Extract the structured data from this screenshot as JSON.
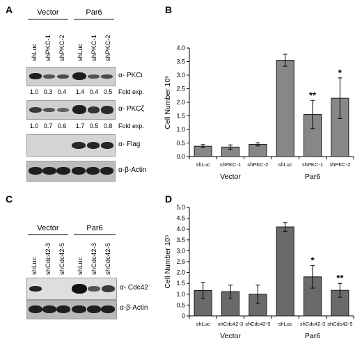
{
  "panels": {
    "A": {
      "letter": "A",
      "groups": [
        "Vector",
        "Par6"
      ],
      "lanes": [
        "shLuc",
        "shPKC‑1",
        "shPKC‑2",
        "shLuc",
        "shPKC‑1",
        "shPKC‑2"
      ],
      "blots": [
        {
          "label": "α- PKCι",
          "values": [
            "1.0",
            "0.3",
            "0.4",
            "1.4",
            "0.4",
            "0.5"
          ],
          "foldexp": "Fold exp."
        },
        {
          "label": "α- PKCζ",
          "values": [
            "1.0",
            "0.7",
            "0.6",
            "1.7",
            "0.5",
            "0.8"
          ],
          "foldexp": "Fold exp."
        },
        {
          "label": "α- Flag"
        },
        {
          "label": "α-β-Actin"
        }
      ]
    },
    "B": {
      "letter": "B"
    },
    "C": {
      "letter": "C",
      "groups": [
        "Vector",
        "Par6"
      ],
      "lanes": [
        "shLuc",
        "shCdc42-3",
        "shCdc42-5",
        "shLuc",
        "shCdc42-3",
        "shCdc42-5"
      ],
      "blots": [
        {
          "label": "α- Cdc42"
        },
        {
          "label": "α-β-Actin"
        }
      ]
    },
    "D": {
      "letter": "D"
    }
  },
  "chart_data": [
    {
      "type": "bar",
      "panel": "B",
      "categories": [
        "shLuc",
        "shPKC-1",
        "shPKC-2",
        "shLuc",
        "shPKC-1",
        "shPKC-2"
      ],
      "groups": [
        {
          "label": "Vector",
          "count": 3
        },
        {
          "label": "Par6",
          "count": 3
        }
      ],
      "values": [
        0.38,
        0.35,
        0.45,
        3.55,
        1.55,
        2.15
      ],
      "errors": [
        0.06,
        0.08,
        0.06,
        0.22,
        0.52,
        0.75
      ],
      "significance": [
        "",
        "",
        "",
        "",
        "**",
        "*"
      ],
      "ylabel": "Cell Number 10⁵",
      "ylim": [
        0,
        4.0
      ],
      "yticks": [
        "0.0",
        "0.5",
        "1.0",
        "1.5",
        "2.0",
        "2.5",
        "3.0",
        "3.5",
        "4.0"
      ],
      "colors": {
        "vector": "#878787",
        "par6": "#878787"
      }
    },
    {
      "type": "bar",
      "panel": "D",
      "categories": [
        "shLuc",
        "shCdc42-3",
        "shCdc42-5",
        "shLuc",
        "shCdc42-3",
        "shCdc42-5"
      ],
      "groups": [
        {
          "label": "Vector",
          "count": 3
        },
        {
          "label": "Par6",
          "count": 3
        }
      ],
      "values": [
        1.17,
        1.12,
        1.0,
        4.1,
        1.8,
        1.18
      ],
      "errors": [
        0.38,
        0.3,
        0.42,
        0.2,
        0.52,
        0.32
      ],
      "significance": [
        "",
        "",
        "",
        "",
        "*",
        "**"
      ],
      "ylabel": "Cell Number 10⁵",
      "ylim": [
        0,
        5.0
      ],
      "yticks": [
        "0",
        "0.5",
        "1.0",
        "1.5",
        "2.0",
        "2.5",
        "3.0",
        "3.5",
        "4.0",
        "4.5",
        "5.0"
      ],
      "colors": {
        "vector": "#6a6a6a",
        "par6": "#6a6a6a"
      }
    }
  ]
}
